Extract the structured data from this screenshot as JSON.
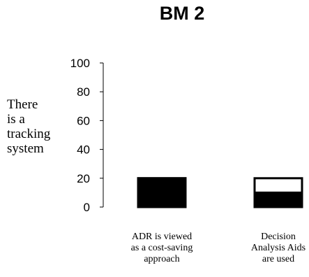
{
  "chart_data": {
    "type": "bar",
    "title": "BM 2",
    "ylabel_lines": [
      "There",
      "is a",
      "tracking",
      "system"
    ],
    "xlabel": "",
    "ylim": [
      0,
      100
    ],
    "yticks": [
      "0",
      "20",
      "40",
      "60",
      "80",
      "100"
    ],
    "categories": [
      [
        "ADR is viewed",
        "as a cost-saving",
        "approach"
      ],
      [
        "Decision",
        "Analysis Aids",
        "are used"
      ]
    ],
    "bars": [
      {
        "category_index": 0,
        "total": 20,
        "filled": 20
      },
      {
        "category_index": 1,
        "total": 20,
        "filled": 10
      }
    ],
    "grid": false,
    "colors": {
      "bar_fill": "#000000",
      "bar_empty": "#ffffff",
      "axis": "#000000"
    }
  }
}
